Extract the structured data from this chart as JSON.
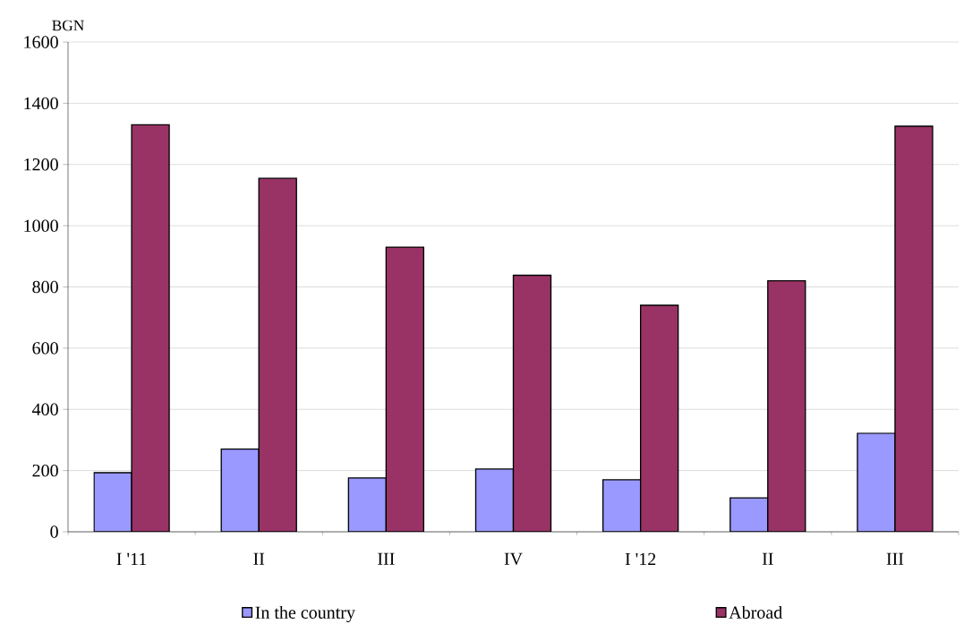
{
  "chart_data": {
    "type": "bar",
    "ylabel": "BGN",
    "categories": [
      "I '11",
      "II",
      "III",
      "IV",
      "I '12",
      "II",
      "III"
    ],
    "series": [
      {
        "name": "In the country",
        "color": "#9999ff",
        "values": [
          193,
          270,
          176,
          205,
          170,
          111,
          322
        ]
      },
      {
        "name": "Abroad",
        "color": "#993366",
        "values": [
          1330,
          1155,
          930,
          838,
          740,
          820,
          1325
        ]
      }
    ],
    "ylim": [
      0,
      1600
    ],
    "yticks": [
      0,
      200,
      400,
      600,
      800,
      1000,
      1200,
      1400,
      1600
    ],
    "grid": "y",
    "legend": "bottom"
  }
}
